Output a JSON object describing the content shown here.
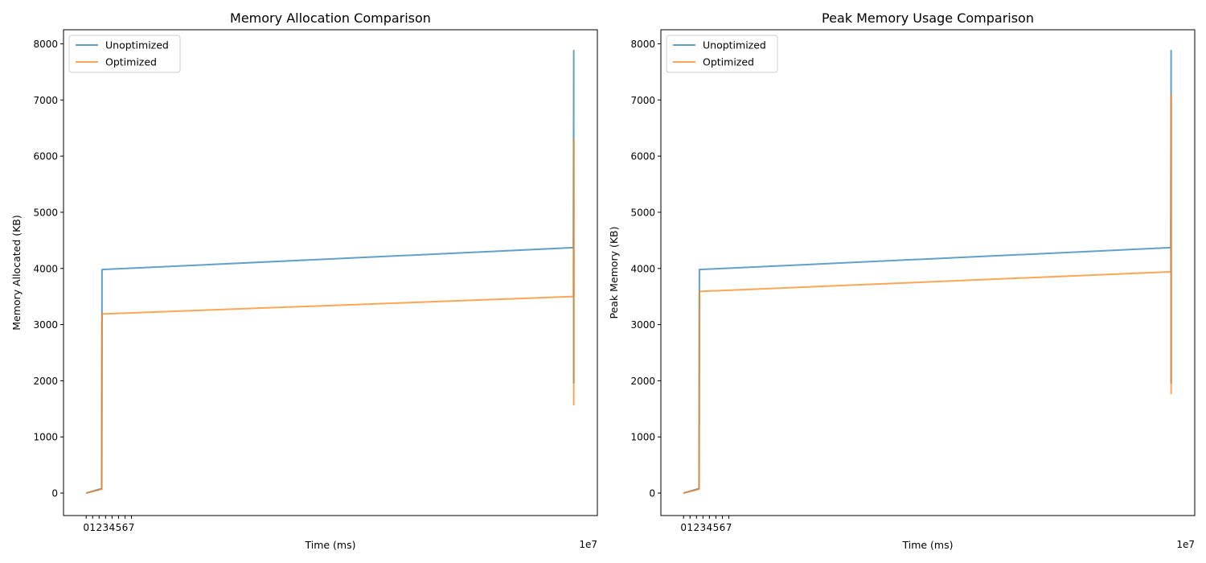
{
  "chart_data": [
    {
      "type": "line",
      "title": "Memory Allocation Comparison",
      "xlabel": "Time (ms)",
      "ylabel": "Memory Allocated (KB)",
      "x_offset_label": "1e7",
      "xlim": [
        -3.5,
        79
      ],
      "ylim": [
        -400,
        8250
      ],
      "xticks": [
        0,
        1,
        2,
        3,
        4,
        5,
        6,
        7
      ],
      "yticks": [
        0,
        1000,
        2000,
        3000,
        4000,
        5000,
        6000,
        7000,
        8000
      ],
      "grid": false,
      "legend_position": "top-left",
      "series": [
        {
          "name": "Unoptimized",
          "color": "#1f77b4",
          "points": [
            [
              0,
              0
            ],
            [
              2.4,
              80
            ],
            [
              2.45,
              3980
            ],
            [
              75.3,
              4370
            ],
            [
              75.35,
              7880
            ],
            [
              75.35,
              1950
            ]
          ]
        },
        {
          "name": "Optimized",
          "color": "#ff7f0e",
          "points": [
            [
              0,
              0
            ],
            [
              2.4,
              70
            ],
            [
              2.45,
              3190
            ],
            [
              75.3,
              3500
            ],
            [
              75.35,
              6300
            ],
            [
              75.35,
              1560
            ]
          ]
        }
      ]
    },
    {
      "type": "line",
      "title": "Peak Memory Usage Comparison",
      "xlabel": "Time (ms)",
      "ylabel": "Peak Memory (KB)",
      "x_offset_label": "1e7",
      "xlim": [
        -3.5,
        79
      ],
      "ylim": [
        -400,
        8250
      ],
      "xticks": [
        0,
        1,
        2,
        3,
        4,
        5,
        6,
        7
      ],
      "yticks": [
        0,
        1000,
        2000,
        3000,
        4000,
        5000,
        6000,
        7000,
        8000
      ],
      "grid": false,
      "legend_position": "top-left",
      "series": [
        {
          "name": "Unoptimized",
          "color": "#1f77b4",
          "points": [
            [
              0,
              0
            ],
            [
              2.4,
              80
            ],
            [
              2.45,
              3980
            ],
            [
              75.3,
              4370
            ],
            [
              75.35,
              7880
            ],
            [
              75.35,
              1950
            ]
          ]
        },
        {
          "name": "Optimized",
          "color": "#ff7f0e",
          "points": [
            [
              0,
              0
            ],
            [
              2.4,
              70
            ],
            [
              2.45,
              3590
            ],
            [
              75.3,
              3940
            ],
            [
              75.35,
              7090
            ],
            [
              75.35,
              1760
            ]
          ]
        }
      ]
    }
  ]
}
